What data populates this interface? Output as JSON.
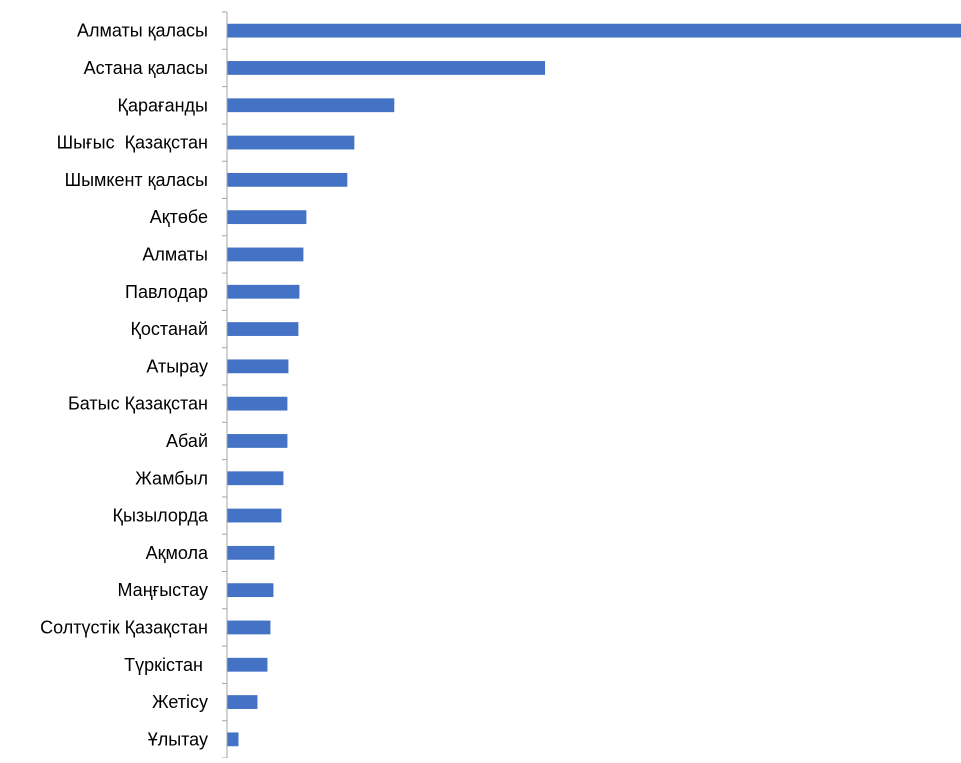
{
  "chart_data": {
    "type": "bar",
    "orientation": "horizontal",
    "title": "",
    "xlabel": "",
    "ylabel": "",
    "categories": [
      "Алматы қаласы",
      "Астана қаласы",
      "Қарағанды",
      "Шығыс  Қазақстан",
      "Шымкент қаласы",
      "Ақтөбе",
      "Алматы",
      "Павлодар",
      "Қостанай",
      "Атырау",
      "Батыс Қазақстан",
      "Абай",
      "Жамбыл",
      "Қызылорда",
      "Ақмола",
      "Маңғыстау",
      "Солтүстік Қазақстан",
      "Түркістан ",
      "Жетісу",
      "Ұлытау"
    ],
    "values": [
      735,
      318,
      167,
      127,
      120,
      79,
      76,
      72,
      71,
      61,
      60,
      60,
      56,
      54,
      47,
      46,
      43,
      40,
      30,
      11
    ],
    "xlim": [
      0,
      735
    ],
    "value_axis_visible": false,
    "grid": false,
    "legend": "none",
    "bar_color": "#4472C4",
    "axis_color": "#A6A6A6",
    "label_color": "#000000"
  }
}
